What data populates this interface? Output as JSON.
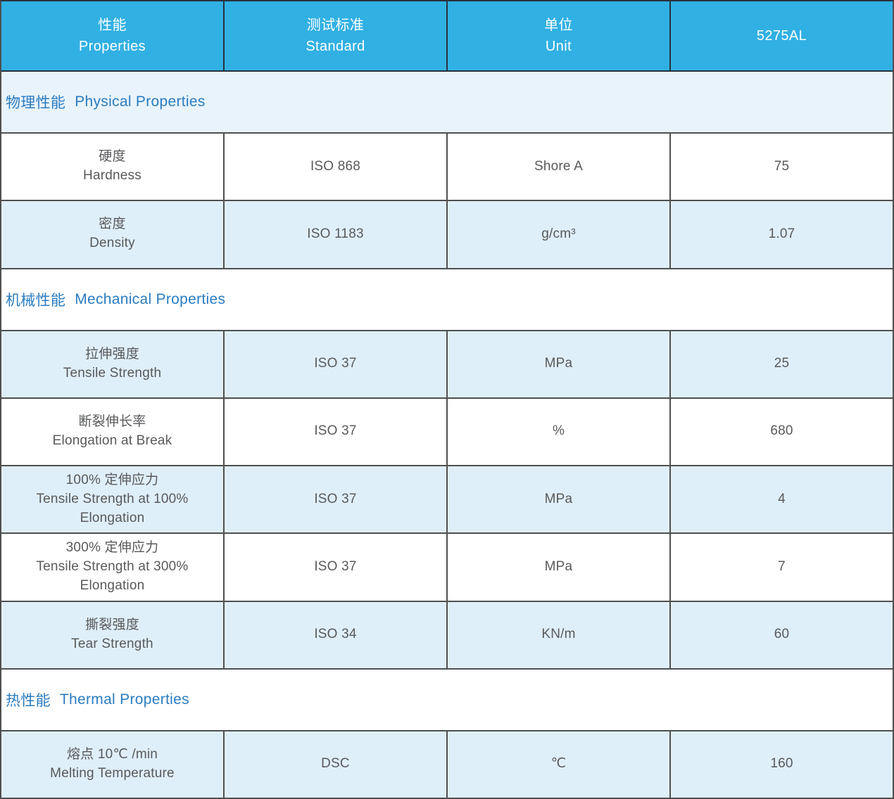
{
  "product_code": "5275AL",
  "colors": {
    "header_bg": "#31b0e3",
    "header_text": "#ffffff",
    "header_line": "#26333d",
    "grid_line": "#4f4f4f",
    "row_shaded_bg": "#dfeffa",
    "section_highlight_bg": "#e9f3fb",
    "section_title": "#2a7cc1",
    "cell_text": "#58595b"
  },
  "header": {
    "columns": [
      {
        "cn": "性能",
        "en": "Properties"
      },
      {
        "cn": "测试标准",
        "en": "Standard"
      },
      {
        "cn": "单位",
        "en": "Unit"
      },
      {
        "cn": "",
        "en": "5275AL"
      }
    ]
  },
  "sections": [
    {
      "title_cn": "物理性能",
      "title_en": "Physical Properties",
      "highlight": true,
      "rows": [
        {
          "name_cn": "硬度",
          "name_en": "Hardness",
          "standard": "ISO 868",
          "unit": "Shore A",
          "value": "75",
          "shaded": false
        },
        {
          "name_cn": "密度",
          "name_en": "Density",
          "standard": "ISO 1183",
          "unit": "g/cm³",
          "value": "1.07",
          "shaded": true
        }
      ]
    },
    {
      "title_cn": "机械性能",
      "title_en": "Mechanical Properties",
      "highlight": false,
      "rows": [
        {
          "name_cn": "拉伸强度",
          "name_en": "Tensile Strength",
          "standard": "ISO 37",
          "unit": "MPa",
          "value": "25",
          "shaded": true
        },
        {
          "name_cn": "断裂伸长率",
          "name_en": "Elongation at Break",
          "standard": "ISO 37",
          "unit": "%",
          "value": "680",
          "shaded": false
        },
        {
          "name_cn": "100% 定伸应力",
          "name_en": "Tensile Strength at 100% Elongation",
          "standard": "ISO 37",
          "unit": "MPa",
          "value": "4",
          "shaded": true
        },
        {
          "name_cn": "300% 定伸应力",
          "name_en": "Tensile Strength at 300% Elongation",
          "standard": "ISO 37",
          "unit": "MPa",
          "value": "7",
          "shaded": false
        },
        {
          "name_cn": "撕裂强度",
          "name_en": "Tear Strength",
          "standard": "ISO 34",
          "unit": "KN/m",
          "value": "60",
          "shaded": true
        }
      ]
    },
    {
      "title_cn": "热性能",
      "title_en": "Thermal Properties",
      "highlight": false,
      "rows": [
        {
          "name_cn": "熔点 10℃ /min",
          "name_en": "Melting Temperature",
          "standard": "DSC",
          "unit": "℃",
          "value": "160",
          "shaded": true
        }
      ]
    }
  ]
}
